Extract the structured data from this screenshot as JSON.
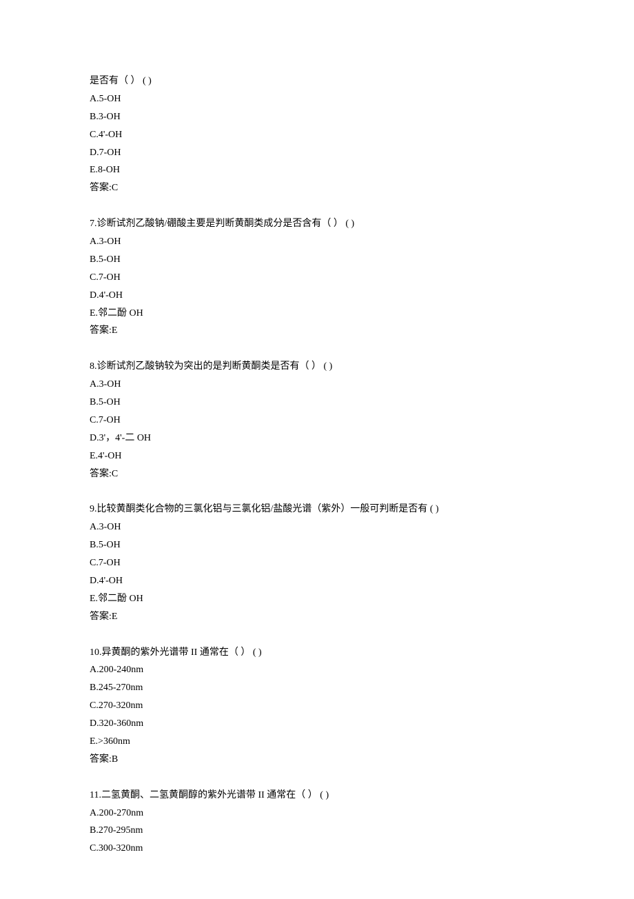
{
  "q6_partial": {
    "stem": "是否有（  ）  ( )",
    "options": [
      "A.5-OH",
      "B.3-OH",
      "C.4'-OH",
      "D.7-OH",
      "E.8-OH"
    ],
    "answer": "答案:C"
  },
  "q7": {
    "stem": "7.诊断试剂乙酸钠/硼酸主要是判断黄酮类成分是否含有（  ）  ( )",
    "options": [
      "A.3-OH",
      "B.5-OH",
      "C.7-OH",
      "D.4'-OH",
      "E.邻二酚 OH"
    ],
    "answer": "答案:E"
  },
  "q8": {
    "stem": "8.诊断试剂乙酸钠较为突出的是判断黄酮类是否有（  ）  ( )",
    "options": [
      "A.3-OH",
      "B.5-OH",
      "C.7-OH",
      "D.3'，4'-二 OH",
      "E.4'-OH"
    ],
    "answer": "答案:C"
  },
  "q9": {
    "stem": "9.比较黄酮类化合物的三氯化铝与三氯化铝/盐酸光谱（紫外）一般可判断是否有  ( )",
    "options": [
      "A.3-OH",
      "B.5-OH",
      "C.7-OH",
      "D.4'-OH",
      "E.邻二酚 OH"
    ],
    "answer": "答案:E"
  },
  "q10": {
    "stem": "10.异黄酮的紫外光谱带 II 通常在（  ）  ( )",
    "options": [
      "A.200-240nm",
      "B.245-270nm",
      "C.270-320nm",
      "D.320-360nm",
      "E.>360nm"
    ],
    "answer": "答案:B"
  },
  "q11": {
    "stem": "11.二氢黄酮、二氢黄酮醇的紫外光谱带 II 通常在（  ）  ( )",
    "options": [
      "A.200-270nm",
      "B.270-295nm",
      "C.300-320nm"
    ]
  }
}
